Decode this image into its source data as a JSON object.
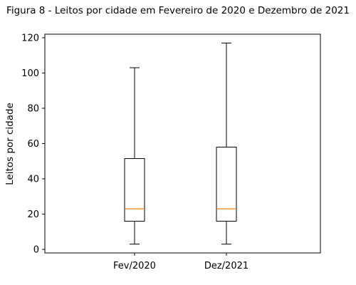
{
  "chart_data": {
    "type": "box",
    "title": "Figura 8 - Leitos por cidade em Fevereiro de 2020 e Dezembro de 2021",
    "xlabel": "",
    "ylabel": "Leitos por cidade",
    "ylim": [
      -2,
      122
    ],
    "yticks": [
      0,
      20,
      40,
      60,
      80,
      100,
      120
    ],
    "categories": [
      "Fev/2020",
      "Dez/2021"
    ],
    "series": [
      {
        "category": "Fev/2020",
        "whisker_low": 3,
        "q1": 16,
        "median": 23,
        "q3": 51.5,
        "whisker_high": 103
      },
      {
        "category": "Dez/2021",
        "whisker_low": 3,
        "q1": 16,
        "median": 23,
        "q3": 58,
        "whisker_high": 117
      }
    ],
    "grid": false,
    "colors": {
      "box": "#000000",
      "median": "#ff7f0e",
      "axes": "#000000"
    }
  }
}
